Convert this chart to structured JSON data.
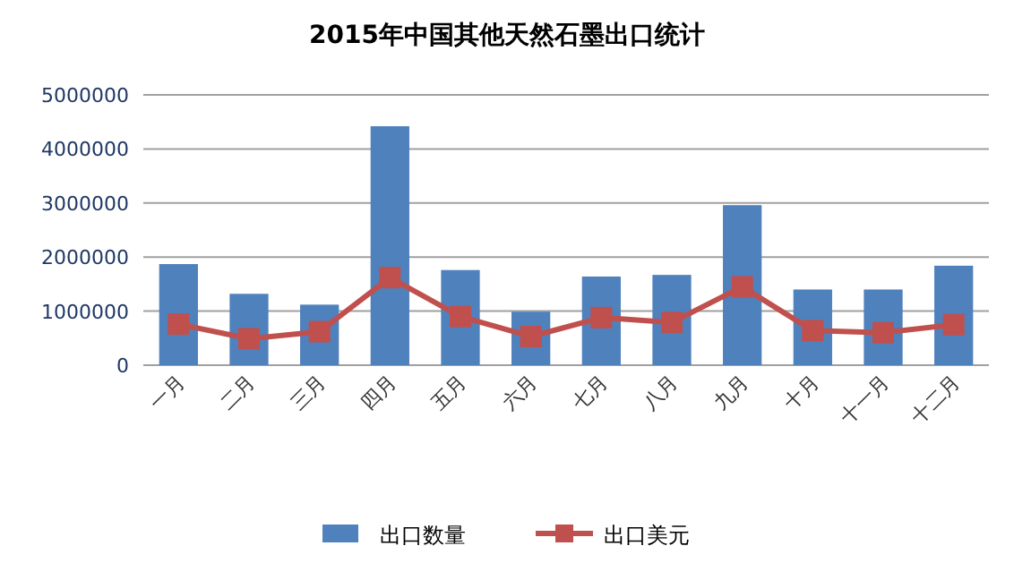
{
  "chart_data": {
    "type": "bar",
    "title": "2015年中国其他天然石墨出口统计",
    "categories": [
      "一月",
      "二月",
      "三月",
      "四月",
      "五月",
      "六月",
      "七月",
      "八月",
      "九月",
      "十月",
      "十一月",
      "十二月"
    ],
    "series": [
      {
        "name": "出口数量",
        "color": "#4f81bd",
        "values": [
          1870000,
          1320000,
          1120000,
          4420000,
          1760000,
          990000,
          1640000,
          1670000,
          2960000,
          1400000,
          1400000,
          1840000
        ]
      },
      {
        "name": "出口美元",
        "type": "line",
        "color": "#c0504d",
        "marker": "square",
        "values": [
          760000,
          490000,
          620000,
          1620000,
          900000,
          530000,
          880000,
          790000,
          1450000,
          640000,
          600000,
          750000
        ]
      }
    ],
    "ylim": [
      0,
      5000000
    ],
    "yticks": [
      0,
      1000000,
      2000000,
      3000000,
      4000000,
      5000000
    ],
    "grid": "y",
    "legend": "bottom"
  }
}
